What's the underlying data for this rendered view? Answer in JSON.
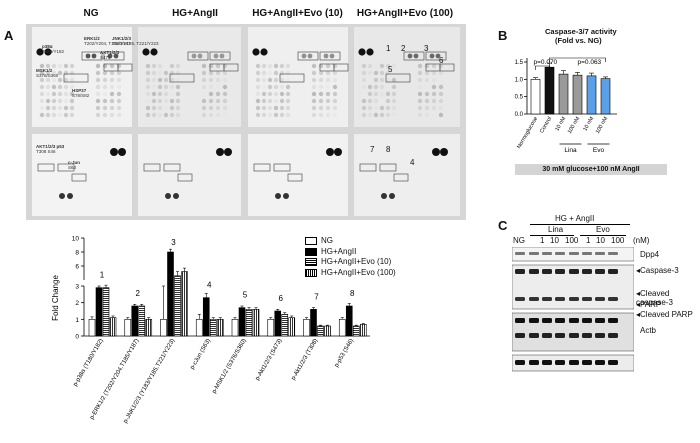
{
  "panelA": {
    "letter": "A",
    "headers": [
      "NG",
      "HG+AngII",
      "HG+AngII+Evo (10)",
      "HG+AngII+Evo (100)"
    ],
    "array_labels": [
      {
        "name": "p38α",
        "sub": "T180/Y182"
      },
      {
        "name": "ERK1/2",
        "sub": "T202/Y204, T185/Y187"
      },
      {
        "name": "JNK1/2/3",
        "sub": "T183/Y185, T221/Y223"
      },
      {
        "name": "MSK1/2",
        "sub": "S376/S360"
      },
      {
        "name": "AKT1/2/3",
        "sub": "S473"
      },
      {
        "name": "HSP27",
        "sub": "S78/S82"
      },
      {
        "name": "AKT1/2/3 p53",
        "sub": "T308  S46"
      },
      {
        "name": "c-Jun",
        "sub": "S63"
      }
    ],
    "spot_numbers": [
      "1",
      "2",
      "3",
      "5",
      "6",
      "7",
      "8",
      "4"
    ]
  },
  "chart_data": {
    "type": "bar",
    "ylabel": "Fold Change",
    "y_ticks_lower": [
      "0",
      "1",
      "2",
      "3"
    ],
    "y_ticks_upper": [
      "6",
      "8",
      "10"
    ],
    "categories": [
      "p-p38α (T180/Y182)",
      "p-ERK1/2 (T202/Y204,T185/Y187)",
      "p-JNK1/2/3 (Y183/Y185,T221/Y223)",
      "p-cJun (S63)",
      "p-MSK1/2 (S376/S360)",
      "p-Akt1/2/3 (S473)",
      "p-Akt1/2/3 (T308)",
      "p-p53 (S46)"
    ],
    "group_numbers": [
      "1",
      "2",
      "3",
      "4",
      "5",
      "6",
      "7",
      "8"
    ],
    "series": [
      {
        "name": "NG",
        "values": [
          1,
          1,
          1,
          1,
          1,
          1,
          1,
          1
        ]
      },
      {
        "name": "HG+AngII",
        "values": [
          2.9,
          1.8,
          8.0,
          2.3,
          1.7,
          1.5,
          1.6,
          1.8
        ]
      },
      {
        "name": "HG+AngII+Evo (10)",
        "values": [
          2.9,
          1.8,
          4.6,
          1.0,
          1.6,
          1.3,
          0.6,
          0.6
        ]
      },
      {
        "name": "HG+AngII+Evo (100)",
        "values": [
          1.1,
          1.0,
          5.2,
          1.0,
          1.6,
          1.1,
          0.6,
          0.7
        ]
      }
    ],
    "errors": [
      [
        0.15,
        0.1,
        2.0,
        0.3,
        0.1,
        0.1,
        0.1,
        0.1
      ],
      [
        0.1,
        0.1,
        0.4,
        0.25,
        0.1,
        0.1,
        0.1,
        0.15
      ],
      [
        0.15,
        0.1,
        0.6,
        0.1,
        0.1,
        0.1,
        0.05,
        0.05
      ],
      [
        0.1,
        0.1,
        0.5,
        0.1,
        0.1,
        0.1,
        0.05,
        0.05
      ]
    ],
    "scale": "broken",
    "legend_position": "right",
    "colors": {
      "ng": "#ffffff",
      "hg": "#000000",
      "evo10": "#ffffff",
      "evo100": "#ffffff"
    }
  },
  "panelB": {
    "letter": "B",
    "title_line1": "Caspase-3/7 activity",
    "title_line2": "(Fold vs. NG)",
    "p1": "p=0.070",
    "p2": "p=0.063",
    "y_ticks": [
      "0.0",
      "0.5",
      "1.0",
      "1.5"
    ],
    "categories": [
      "Normoglucose",
      "Control",
      "10 nM",
      "100 nM",
      "10 nM",
      "100 nM"
    ],
    "group_labels": [
      "Lina",
      "Evo"
    ],
    "footer": "30 mM glucose+100 nM AngII",
    "values": [
      1.0,
      1.35,
      1.15,
      1.12,
      1.1,
      1.02
    ],
    "errors": [
      0.05,
      0.12,
      0.1,
      0.08,
      0.08,
      0.05
    ],
    "colors": [
      "#ffffff",
      "#111111",
      "#9a9a9a",
      "#9a9a9a",
      "#5aa0e8",
      "#5aa0e8"
    ]
  },
  "panelC": {
    "letter": "C",
    "header": "HG + AngII",
    "groups": [
      "Lina",
      "Evo"
    ],
    "lane_labels": [
      "NG",
      "1",
      "10",
      "100",
      "1",
      "10",
      "100",
      "(nM)"
    ],
    "proteins": [
      "Dpp4",
      "Caspase-3",
      "Cleaved caspase-3",
      "PARP",
      "Cleaved PARP",
      "Actb"
    ]
  }
}
